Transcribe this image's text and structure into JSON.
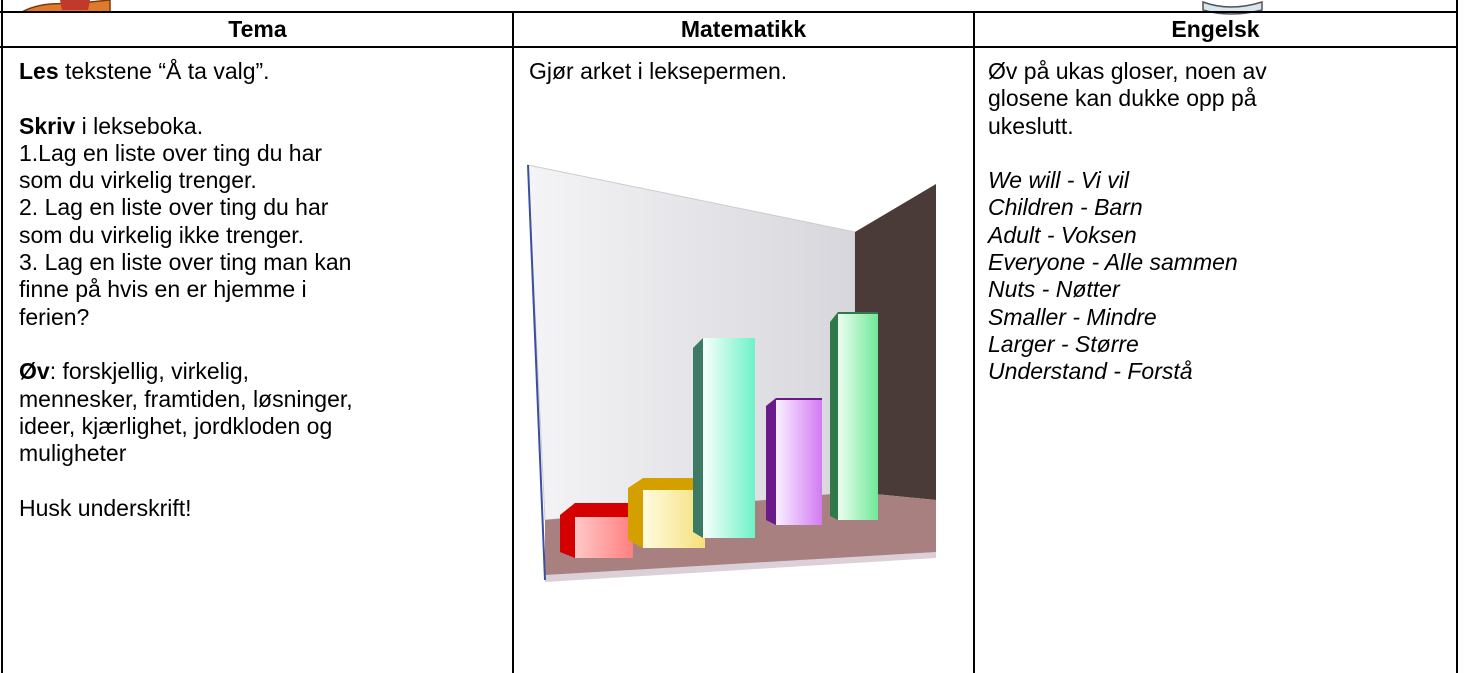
{
  "table": {
    "headers": [
      "Tema",
      "Matematikk",
      "Engelsk"
    ],
    "tema": {
      "les_label": "Les",
      "les_text": "tekstene “Å ta valg”.",
      "skriv_label": "Skriv",
      "skriv_text": "i lekseboka.",
      "tasks": [
        [
          "1.Lag en liste over ting du har",
          "som du virkelig trenger."
        ],
        [
          "2. Lag en liste over ting du har",
          "som du virkelig ikke trenger."
        ],
        [
          "3. Lag en liste over ting man kan",
          "finne på hvis en er hjemme i",
          "ferien?"
        ]
      ],
      "ov_label": "Øv",
      "ov_lines": [
        ": forskjellig, virkelig,",
        "mennesker, framtiden, løsninger,",
        "ideer, kjærlighet, jordkloden og",
        "muligheter"
      ],
      "closing": "Husk underskrift!"
    },
    "matematikk": {
      "text": "Gjør arket i leksepermen."
    },
    "engelsk": {
      "intro": [
        "Øv på ukas gloser, noen av",
        "glosene kan dukke opp på",
        "ukeslutt."
      ],
      "words": [
        "We will - Vi vil",
        "Children - Barn",
        "Adult - Voksen",
        "Everyone - Alle sammen",
        "Nuts - Nøtter",
        "Smaller - Mindre",
        "Larger - Større",
        "Understand - Forstå"
      ]
    }
  }
}
